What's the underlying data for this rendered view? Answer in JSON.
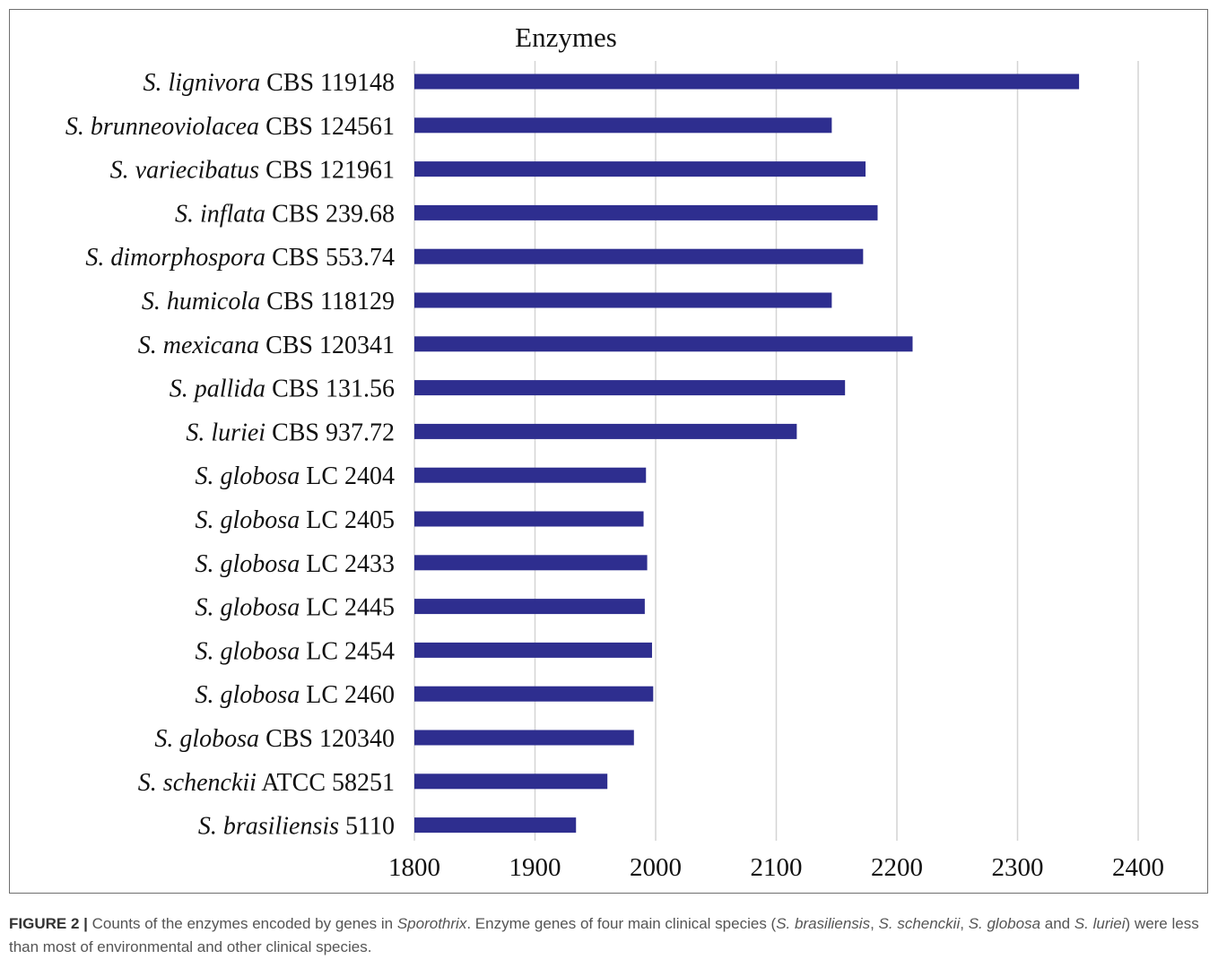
{
  "chart_data": {
    "type": "bar",
    "orientation": "horizontal",
    "title": "Enzymes",
    "xlim": [
      1800,
      2400
    ],
    "x_ticks": [
      "1800",
      "1900",
      "2000",
      "2100",
      "2200",
      "2300",
      "2400"
    ],
    "grid": true,
    "bar_color": "#2e2e8f",
    "categories": [
      {
        "species": "S. lignivora",
        "strain": "CBS 119148"
      },
      {
        "species": "S. brunneoviolacea",
        "strain": "CBS 124561"
      },
      {
        "species": "S. variecibatus",
        "strain": "CBS 121961"
      },
      {
        "species": "S. inflata",
        "strain": "CBS 239.68"
      },
      {
        "species": "S. dimorphospora",
        "strain": "CBS 553.74"
      },
      {
        "species": "S. humicola",
        "strain": "CBS 118129"
      },
      {
        "species": "S. mexicana",
        "strain": "CBS 120341"
      },
      {
        "species": "S. pallida",
        "strain": "CBS 131.56"
      },
      {
        "species": "S. luriei",
        "strain": "CBS 937.72"
      },
      {
        "species": "S. globosa",
        "strain": "LC 2404"
      },
      {
        "species": "S. globosa",
        "strain": "LC 2405"
      },
      {
        "species": "S. globosa",
        "strain": "LC 2433"
      },
      {
        "species": "S. globosa",
        "strain": "LC 2445"
      },
      {
        "species": "S. globosa",
        "strain": "LC 2454"
      },
      {
        "species": "S. globosa",
        "strain": "LC 2460"
      },
      {
        "species": "S. globosa",
        "strain": "CBS 120340"
      },
      {
        "species": "S. schenckii",
        "strain": "ATCC 58251"
      },
      {
        "species": "S. brasiliensis",
        "strain": "5110"
      }
    ],
    "values": [
      2351,
      2146,
      2174,
      2184,
      2172,
      2146,
      2213,
      2157,
      2117,
      1992,
      1990,
      1993,
      1991,
      1997,
      1998,
      1982,
      1960,
      1934
    ]
  },
  "caption": {
    "label": "FIGURE 2 |",
    "text_1": " Counts of the enzymes encoded by genes in ",
    "genus": "Sporothrix",
    "text_2": ". Enzyme genes of four main clinical species (",
    "sp1": "S. brasiliensis",
    "sep1": ", ",
    "sp2": "S. schenckii",
    "sep2": ", ",
    "sp3": "S. globosa",
    "sep3": " and ",
    "sp4": "S. luriei",
    "text_3": ") were less than most of environmental and other clinical species."
  }
}
